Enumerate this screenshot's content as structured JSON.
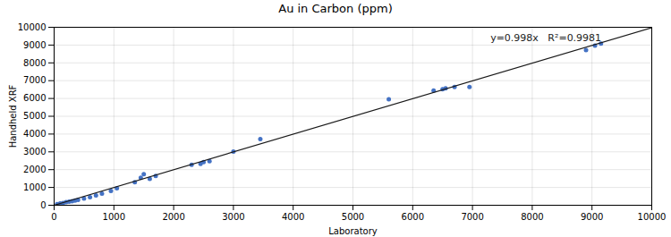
{
  "chart_data": {
    "type": "scatter",
    "title": "Au in Carbon (ppm)",
    "xlabel": "Laboratory",
    "ylabel": "Handheld XRF",
    "annotation": "y=0.998x   R²=0.9981",
    "xlim": [
      0,
      10000
    ],
    "ylim": [
      0,
      10000
    ],
    "xticks": [
      0,
      1000,
      2000,
      3000,
      4000,
      5000,
      6000,
      7000,
      8000,
      9000,
      10000
    ],
    "yticks": [
      0,
      1000,
      2000,
      3000,
      4000,
      5000,
      6000,
      7000,
      8000,
      9000,
      10000
    ],
    "grid": true,
    "series": [
      {
        "type": "scatter",
        "color": "#4472C4",
        "x": [
          50,
          100,
          150,
          200,
          250,
          300,
          350,
          400,
          500,
          600,
          700,
          800,
          950,
          1050,
          1350,
          1450,
          1500,
          1600,
          1700,
          2300,
          2450,
          2500,
          2600,
          3000,
          3450,
          5600,
          6350,
          6500,
          6550,
          6700,
          6950,
          8900,
          9050,
          9150
        ],
        "values": [
          60,
          100,
          130,
          170,
          200,
          230,
          260,
          300,
          380,
          450,
          550,
          650,
          800,
          950,
          1300,
          1550,
          1750,
          1480,
          1650,
          2280,
          2330,
          2420,
          2470,
          3020,
          3720,
          5950,
          6450,
          6520,
          6570,
          6650,
          6650,
          8720,
          8970,
          9080
        ]
      },
      {
        "type": "line",
        "color": "#1a1a1a",
        "x": [
          0,
          10000
        ],
        "values": [
          0,
          9980
        ]
      }
    ]
  }
}
